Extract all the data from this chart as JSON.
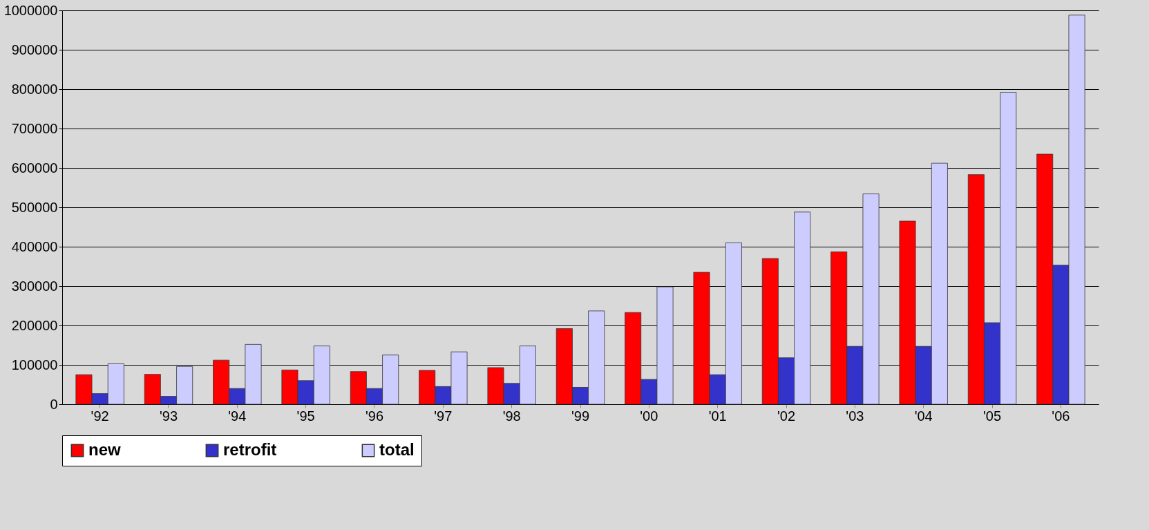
{
  "chart_data": {
    "type": "bar",
    "categories": [
      "'92",
      "'93",
      "'94",
      "'95",
      "'96",
      "'97",
      "'98",
      "'99",
      "'00",
      "'01",
      "'02",
      "'03",
      "'04",
      "'05",
      "'06"
    ],
    "series": [
      {
        "name": "new",
        "color": "#ff0000",
        "values": [
          75000,
          76000,
          112000,
          87000,
          83000,
          86000,
          93000,
          192000,
          233000,
          335000,
          370000,
          387000,
          465000,
          583000,
          635000
        ]
      },
      {
        "name": "retrofit",
        "color": "#3333cc",
        "values": [
          27000,
          20000,
          40000,
          60000,
          40000,
          45000,
          53000,
          43000,
          63000,
          75000,
          118000,
          147000,
          147000,
          207000,
          353000
        ]
      },
      {
        "name": "total",
        "color": "#ccccff",
        "values": [
          103000,
          96000,
          152000,
          148000,
          125000,
          133000,
          148000,
          237000,
          298000,
          410000,
          488000,
          534000,
          612000,
          792000,
          988000
        ]
      }
    ],
    "ylim": [
      0,
      1000000
    ],
    "yticks": [
      0,
      100000,
      200000,
      300000,
      400000,
      500000,
      600000,
      700000,
      800000,
      900000,
      1000000
    ],
    "grid": "y",
    "legend": "bottom"
  }
}
